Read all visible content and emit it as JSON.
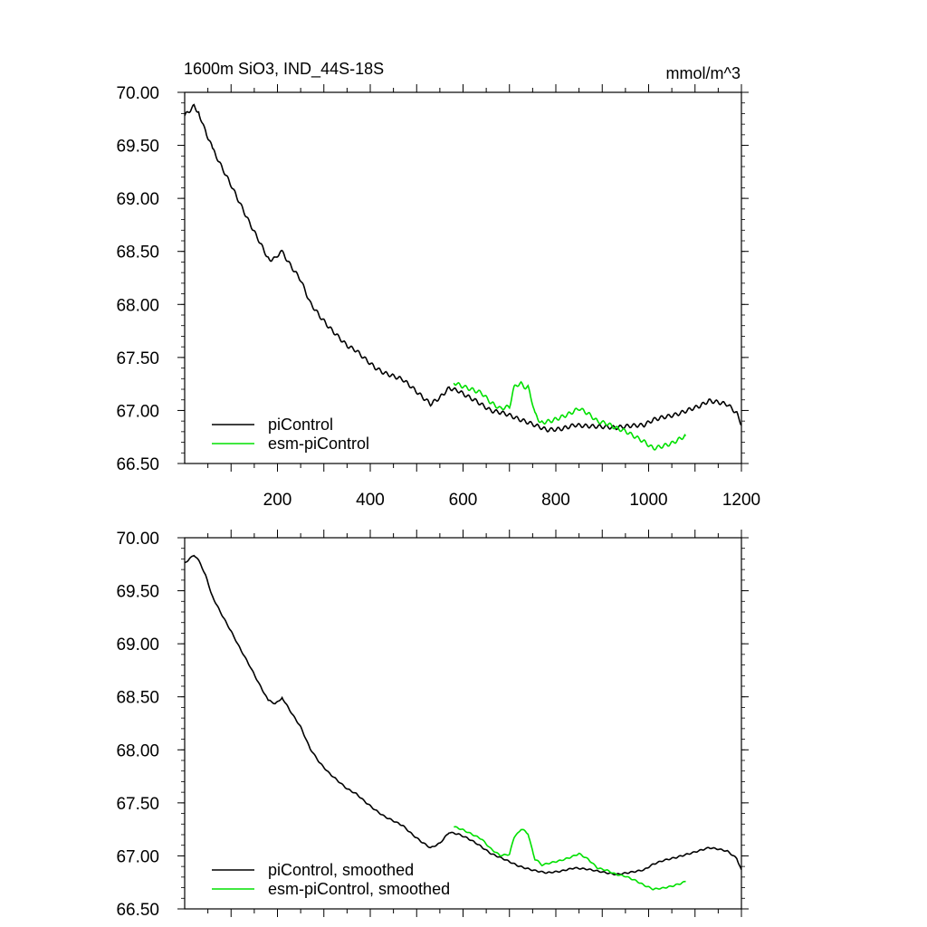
{
  "title": "1600m SiO3, IND_44S-18S",
  "units": "mmol/m^3",
  "chart_data": [
    {
      "type": "line",
      "panel": "raw",
      "xlim": [
        0,
        1200
      ],
      "ylim": [
        66.5,
        70.0
      ],
      "x_ticks": [
        200,
        400,
        600,
        800,
        1000,
        1200
      ],
      "x_tick_labels": [
        "200",
        "400",
        "600",
        "800",
        "1000",
        "1200"
      ],
      "y_ticks": [
        66.5,
        67.0,
        67.5,
        68.0,
        68.5,
        69.0,
        69.5,
        70.0
      ],
      "y_tick_labels": [
        "66.50",
        "67.00",
        "67.50",
        "68.00",
        "68.50",
        "69.00",
        "69.50",
        "70.00"
      ],
      "legend_position": "bottom-left",
      "series": [
        {
          "name": "piControl",
          "color": "#000000",
          "x": [
            0,
            10,
            20,
            30,
            45,
            60,
            80,
            100,
            120,
            140,
            160,
            180,
            195,
            210,
            230,
            250,
            270,
            290,
            310,
            330,
            350,
            370,
            390,
            410,
            430,
            450,
            470,
            490,
            510,
            530,
            550,
            570,
            590,
            610,
            630,
            660,
            690,
            720,
            750,
            780,
            810,
            840,
            870,
            900,
            930,
            960,
            990,
            1010,
            1030,
            1060,
            1090,
            1110,
            1130,
            1150,
            1170,
            1190,
            1200
          ],
          "y": [
            69.78,
            69.82,
            69.86,
            69.8,
            69.65,
            69.45,
            69.28,
            69.12,
            68.95,
            68.78,
            68.62,
            68.45,
            68.42,
            68.5,
            68.35,
            68.22,
            68.0,
            67.88,
            67.78,
            67.7,
            67.62,
            67.58,
            67.5,
            67.42,
            67.36,
            67.32,
            67.28,
            67.2,
            67.12,
            67.05,
            67.12,
            67.22,
            67.2,
            67.15,
            67.1,
            67.0,
            66.96,
            66.9,
            66.86,
            66.82,
            66.84,
            66.88,
            66.86,
            66.84,
            66.82,
            66.84,
            66.86,
            66.92,
            66.95,
            66.98,
            67.02,
            67.04,
            67.08,
            67.06,
            67.04,
            66.96,
            66.86
          ]
        },
        {
          "name": "esm-piControl",
          "color": "#00e000",
          "x": [
            580,
            600,
            620,
            640,
            660,
            680,
            700,
            710,
            725,
            740,
            755,
            770,
            790,
            810,
            830,
            850,
            870,
            890,
            910,
            930,
            950,
            970,
            990,
            1010,
            1030,
            1050,
            1070,
            1080
          ],
          "y": [
            67.28,
            67.24,
            67.2,
            67.16,
            67.06,
            67.0,
            67.02,
            67.2,
            67.26,
            67.22,
            66.96,
            66.9,
            66.92,
            66.95,
            66.98,
            67.02,
            66.96,
            66.88,
            66.86,
            66.82,
            66.8,
            66.76,
            66.72,
            66.66,
            66.68,
            66.7,
            66.74,
            66.76
          ]
        }
      ]
    },
    {
      "type": "line",
      "panel": "smoothed",
      "xlim": [
        0,
        1200
      ],
      "ylim": [
        66.5,
        70.0
      ],
      "x_ticks": [
        200,
        400,
        600,
        800,
        1000,
        1200
      ],
      "y_ticks": [
        66.5,
        67.0,
        67.5,
        68.0,
        68.5,
        69.0,
        69.5,
        70.0
      ],
      "y_tick_labels": [
        "66.50",
        "67.00",
        "67.50",
        "68.00",
        "68.50",
        "69.00",
        "69.50",
        "70.00"
      ],
      "legend_position": "bottom-left",
      "series": [
        {
          "name": "piControl, smoothed",
          "color": "#000000",
          "x": [
            0,
            10,
            20,
            30,
            45,
            60,
            80,
            100,
            120,
            140,
            160,
            180,
            195,
            210,
            230,
            250,
            270,
            290,
            310,
            330,
            350,
            370,
            390,
            410,
            430,
            450,
            470,
            490,
            510,
            530,
            550,
            570,
            590,
            610,
            630,
            660,
            690,
            720,
            750,
            780,
            810,
            840,
            870,
            900,
            930,
            960,
            990,
            1010,
            1030,
            1060,
            1090,
            1110,
            1130,
            1150,
            1170,
            1190,
            1200
          ],
          "y": [
            69.76,
            69.8,
            69.84,
            69.79,
            69.64,
            69.45,
            69.28,
            69.12,
            68.95,
            68.79,
            68.62,
            68.46,
            68.44,
            68.49,
            68.35,
            68.22,
            68.02,
            67.89,
            67.79,
            67.71,
            67.63,
            67.58,
            67.5,
            67.43,
            67.37,
            67.33,
            67.29,
            67.21,
            67.14,
            67.08,
            67.12,
            67.22,
            67.2,
            67.16,
            67.11,
            67.02,
            66.97,
            66.91,
            66.87,
            66.84,
            66.85,
            66.88,
            66.87,
            66.85,
            66.83,
            66.85,
            66.87,
            66.92,
            66.95,
            66.98,
            67.02,
            67.05,
            67.08,
            67.07,
            67.05,
            66.98,
            66.87
          ]
        },
        {
          "name": "esm-piControl, smoothed",
          "color": "#00e000",
          "x": [
            580,
            600,
            620,
            640,
            660,
            680,
            700,
            710,
            725,
            740,
            755,
            770,
            790,
            810,
            830,
            850,
            870,
            890,
            910,
            930,
            950,
            970,
            990,
            1010,
            1030,
            1050,
            1070,
            1080
          ],
          "y": [
            67.27,
            67.24,
            67.2,
            67.16,
            67.07,
            67.01,
            67.02,
            67.18,
            67.25,
            67.21,
            66.97,
            66.91,
            66.93,
            66.95,
            66.98,
            67.02,
            66.97,
            66.89,
            66.87,
            66.83,
            66.81,
            66.77,
            66.72,
            66.68,
            66.69,
            66.71,
            66.74,
            66.76
          ]
        }
      ]
    }
  ]
}
